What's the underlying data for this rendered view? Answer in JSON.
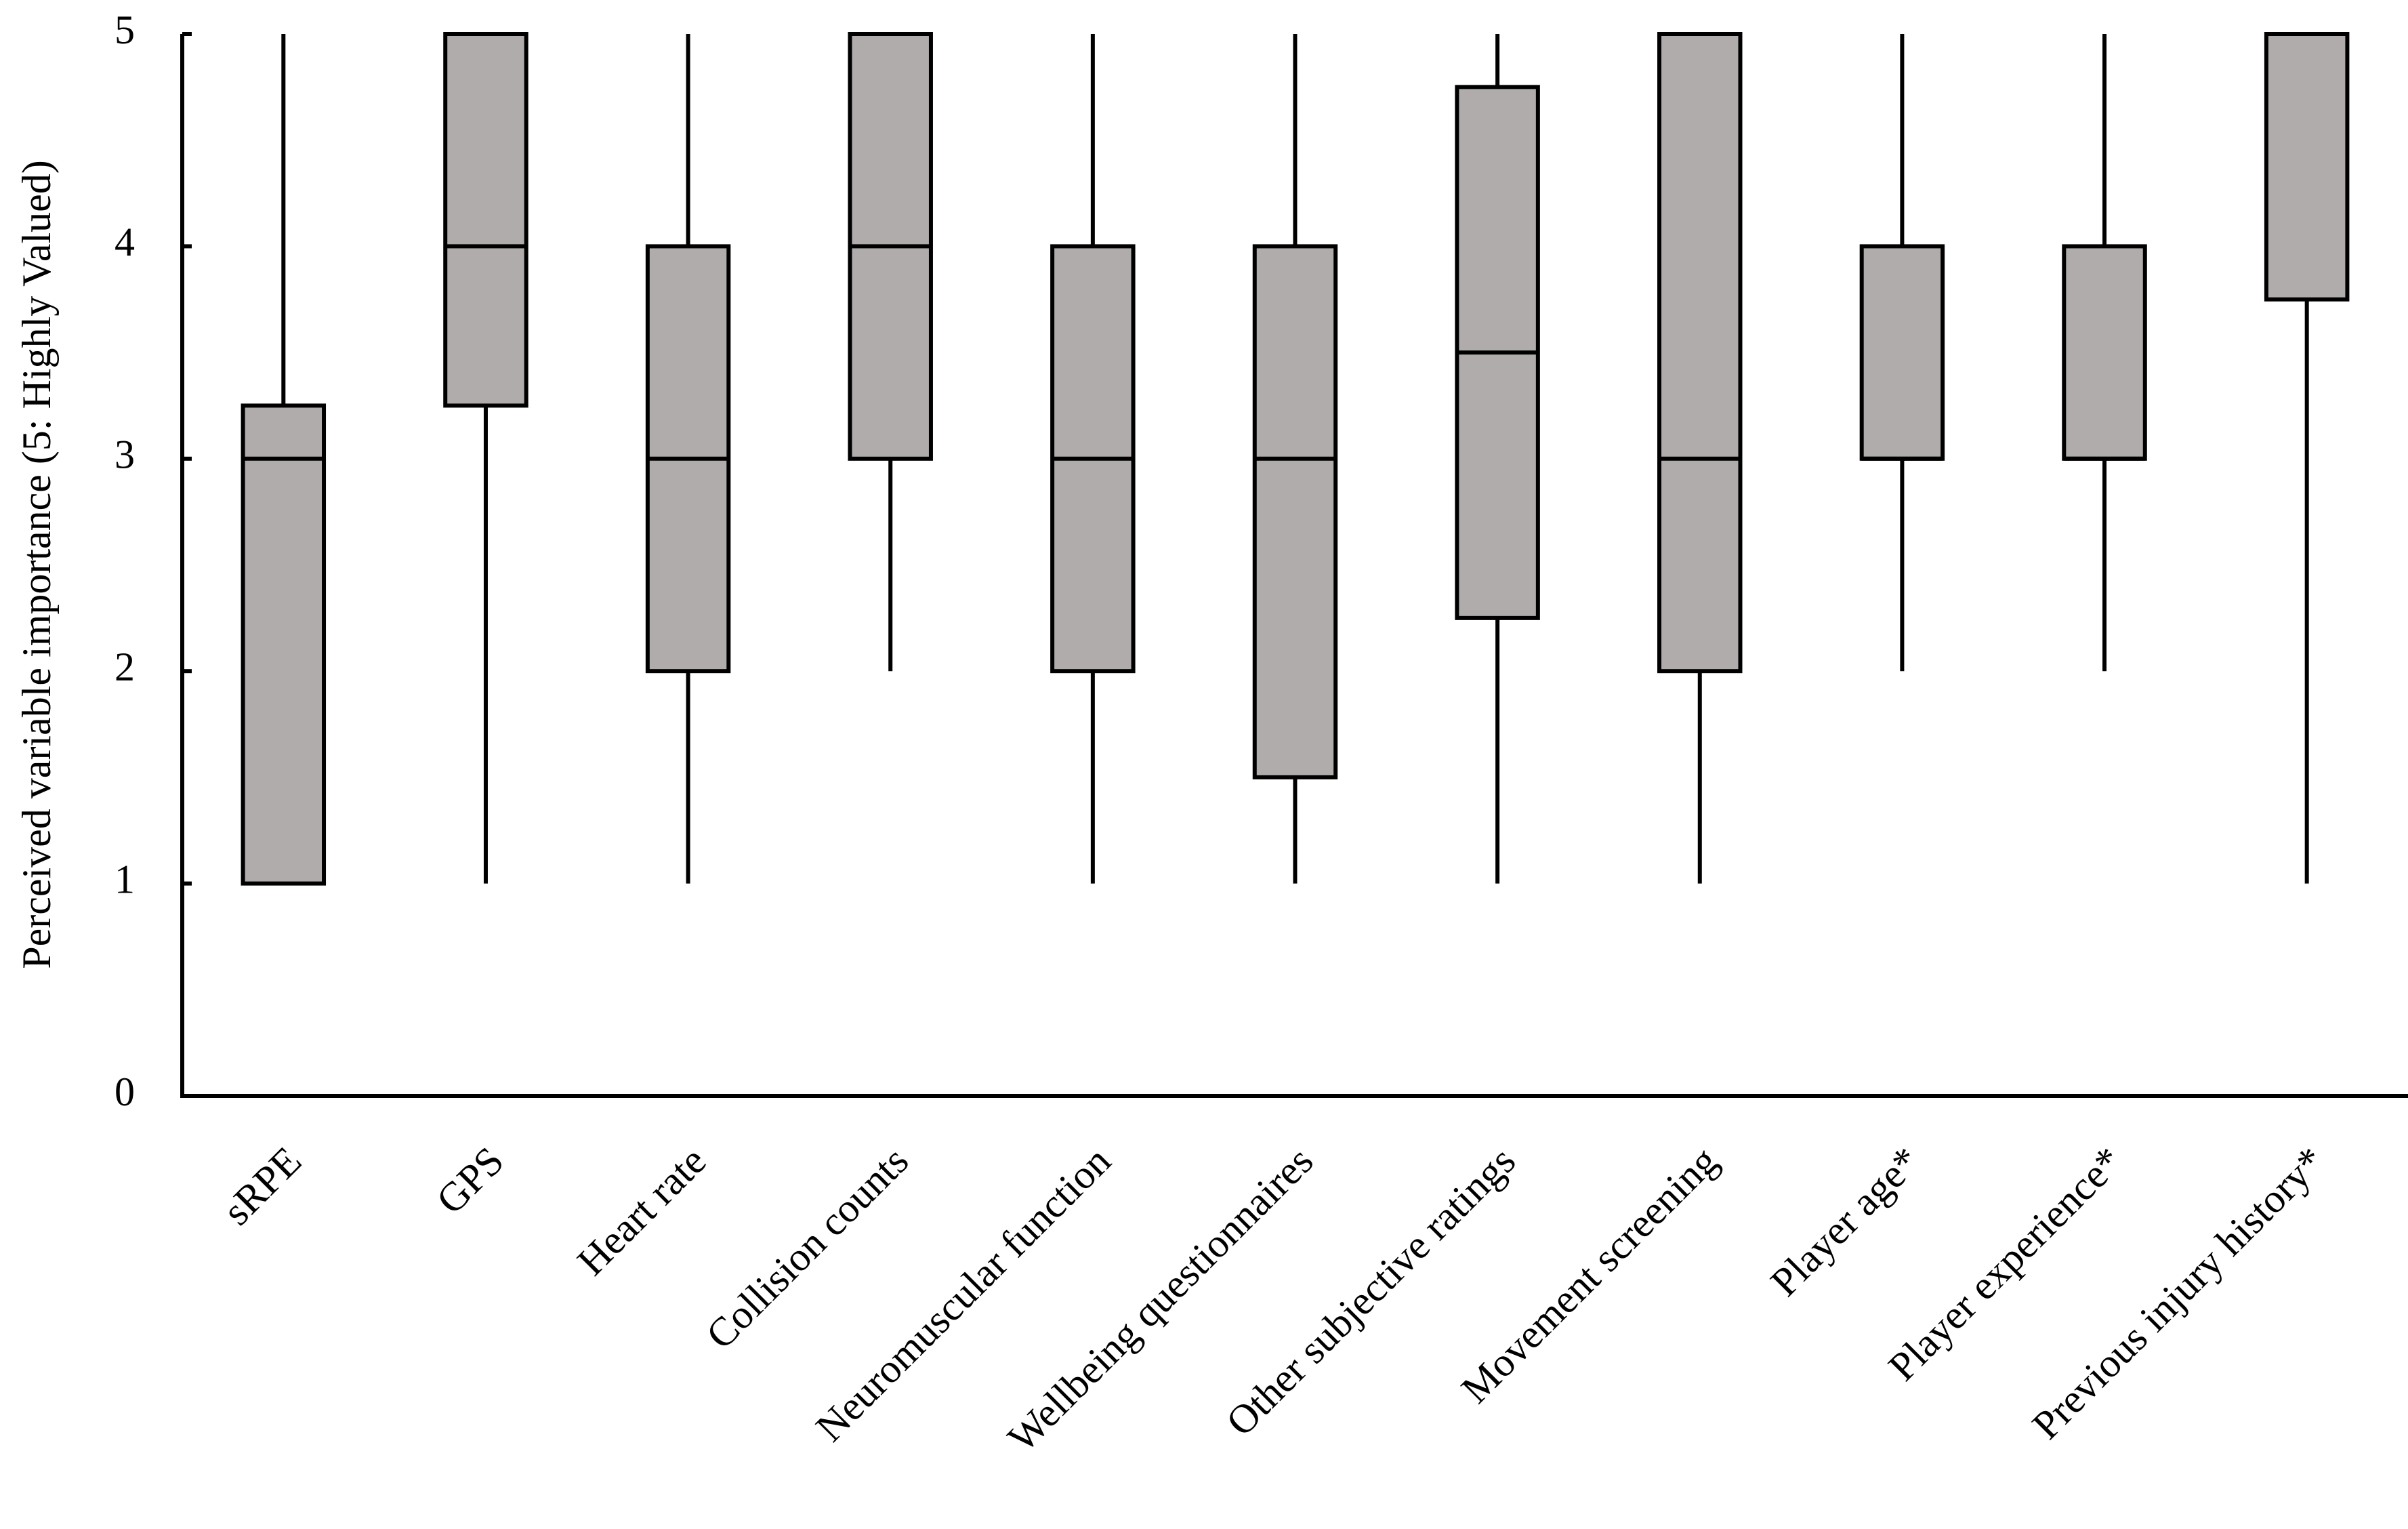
{
  "chart_data": {
    "type": "box",
    "y_label": "Perceived variable importance (5: Highly Valued)",
    "categories": [
      "sRPE",
      "GPS",
      "Heart rate",
      "Collision counts",
      "Neuromuscular function",
      "Wellbeing questionnaires",
      "Other subjective ratings",
      "Movement screening",
      "Player age*",
      "Player experience*",
      "Previous injury history*"
    ],
    "min": [
      1,
      1,
      1,
      2,
      1,
      1,
      1,
      1,
      2,
      2,
      1
    ],
    "q1": [
      1,
      3.25,
      2,
      3,
      2,
      1.5,
      2.25,
      2,
      3,
      3,
      3.75
    ],
    "median": [
      3,
      4,
      3,
      4,
      3,
      3,
      3.5,
      3,
      3,
      3,
      5
    ],
    "q3": [
      3.25,
      5,
      4,
      5,
      4,
      4,
      4.75,
      5,
      4,
      4,
      5
    ],
    "max": [
      5,
      5,
      5,
      5,
      5,
      5,
      5,
      5,
      5,
      5,
      5
    ],
    "color": "#b0acab",
    "ylim": [
      0,
      5
    ],
    "yticks": [
      0,
      1,
      2,
      3,
      4,
      5
    ]
  }
}
